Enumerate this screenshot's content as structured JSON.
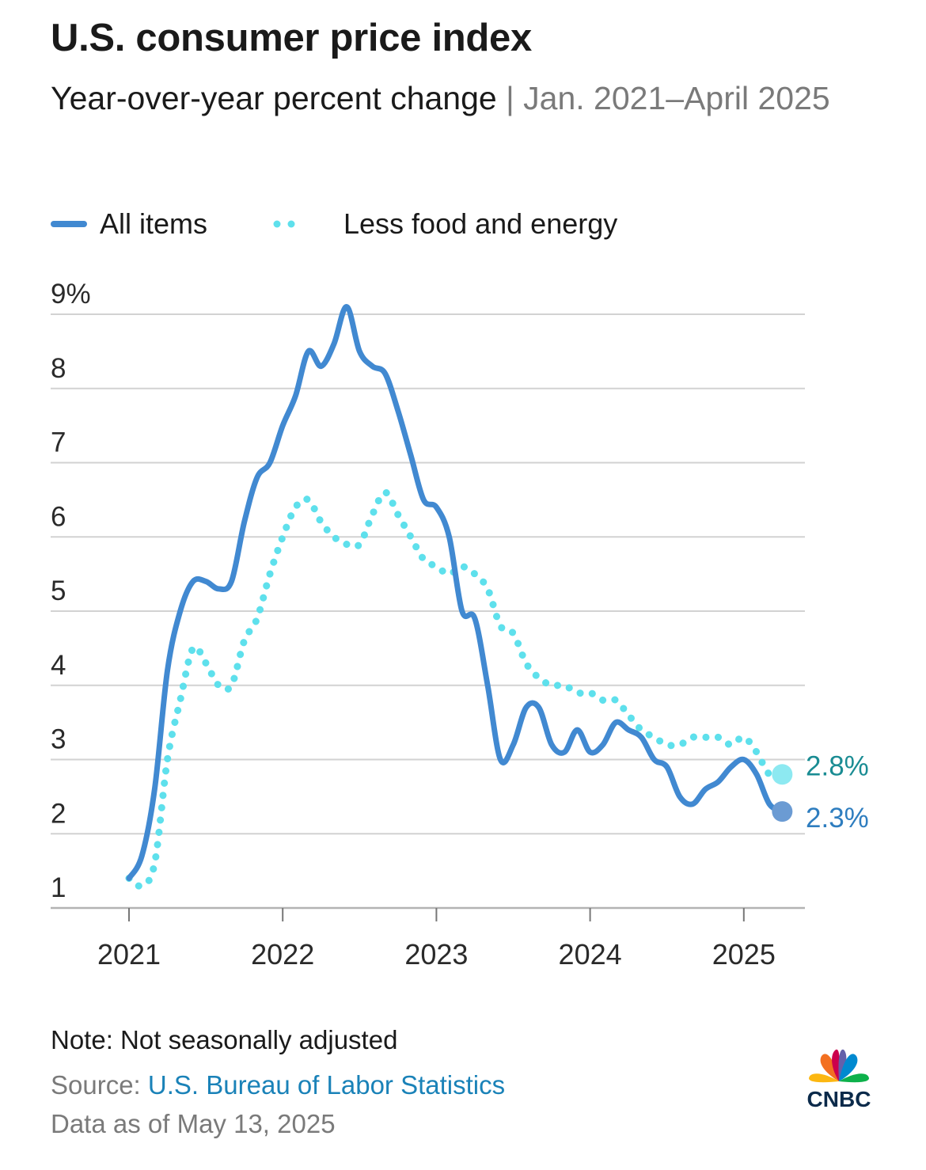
{
  "header": {
    "title": "U.S. consumer price index",
    "subtitle_main": "Year-over-year percent change",
    "subtitle_sep": " | ",
    "subtitle_range": "Jan. 2021–April 2025"
  },
  "legend": {
    "all_items": "All items",
    "core": "Less food and energy"
  },
  "footer": {
    "note": "Note: Not seasonally adjusted",
    "source_prefix": "Source: ",
    "source_name": "U.S. Bureau of Labor Statistics",
    "data_as_of": "Data as of May 13, 2025"
  },
  "logo": {
    "text": "CNBC",
    "icon": "nbc-peacock-icon"
  },
  "colors": {
    "all_items": "#4189d1",
    "all_items_end": "#6b9bd3",
    "core": "#5ee0ec",
    "core_end": "#8de9f1",
    "core_label": "#1a8c93",
    "all_label": "#2e7dbf",
    "grid": "#d2d2d2",
    "axis": "#b3b3b3"
  },
  "chart_data": {
    "type": "line",
    "x_start": "2021-01",
    "x_end": "2025-04",
    "x_tick_labels": [
      "2021",
      "2022",
      "2023",
      "2024",
      "2025"
    ],
    "y_tick_labels": [
      "9%",
      "8",
      "7",
      "6",
      "5",
      "4",
      "3",
      "2",
      "1"
    ],
    "y_ticks": [
      9,
      8,
      7,
      6,
      5,
      4,
      3,
      2,
      1
    ],
    "ylim": [
      1,
      9
    ],
    "grid": true,
    "legend_position": "top-left",
    "end_labels": {
      "all_items": "2.3%",
      "core": "2.8%"
    },
    "series": [
      {
        "name": "All items",
        "style": "solid",
        "values": [
          1.4,
          1.7,
          2.6,
          4.2,
          5.0,
          5.4,
          5.4,
          5.3,
          5.4,
          6.2,
          6.8,
          7.0,
          7.5,
          7.9,
          8.5,
          8.3,
          8.6,
          9.1,
          8.5,
          8.3,
          8.2,
          7.7,
          7.1,
          6.5,
          6.4,
          6.0,
          5.0,
          4.9,
          4.0,
          3.0,
          3.2,
          3.7,
          3.7,
          3.2,
          3.1,
          3.4,
          3.1,
          3.2,
          3.5,
          3.4,
          3.3,
          3.0,
          2.9,
          2.5,
          2.4,
          2.6,
          2.7,
          2.9,
          3.0,
          2.8,
          2.4,
          2.3
        ]
      },
      {
        "name": "Less food and energy",
        "style": "dotted",
        "values": [
          1.4,
          1.3,
          1.6,
          3.0,
          3.8,
          4.5,
          4.3,
          4.0,
          4.0,
          4.6,
          4.9,
          5.5,
          6.0,
          6.4,
          6.5,
          6.2,
          6.0,
          5.9,
          5.9,
          6.3,
          6.6,
          6.3,
          6.0,
          5.7,
          5.6,
          5.5,
          5.6,
          5.5,
          5.3,
          4.8,
          4.7,
          4.3,
          4.1,
          4.0,
          4.0,
          3.9,
          3.9,
          3.8,
          3.8,
          3.6,
          3.4,
          3.3,
          3.2,
          3.2,
          3.3,
          3.3,
          3.3,
          3.2,
          3.3,
          3.1,
          2.8,
          2.8
        ]
      }
    ]
  }
}
